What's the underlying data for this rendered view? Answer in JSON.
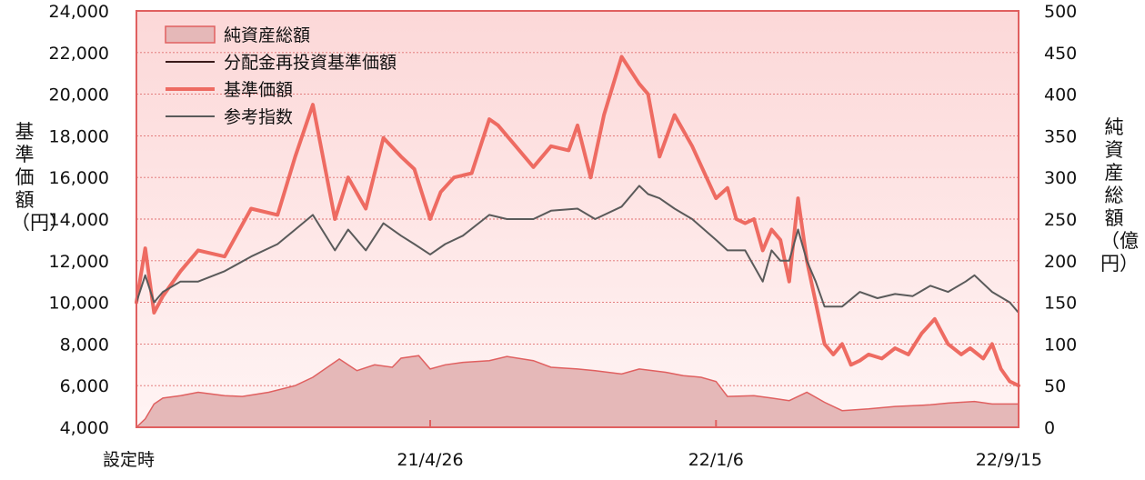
{
  "chart_data": {
    "type": "line",
    "ylabel_left": "基準価額（円）",
    "ylabel_right": "純資産総額（億円）",
    "y_left_range": [
      4000,
      24000
    ],
    "y_left_ticks": [
      "4,000",
      "6,000",
      "8,000",
      "10,000",
      "12,000",
      "14,000",
      "16,000",
      "18,000",
      "20,000",
      "22,000",
      "24,000"
    ],
    "y_right_range": [
      0,
      500
    ],
    "y_right_ticks": [
      "0",
      "50",
      "100",
      "150",
      "200",
      "250",
      "300",
      "350",
      "400",
      "450",
      "500"
    ],
    "x_ticks": [
      "設定時",
      "21/4/26",
      "22/1/6",
      "22/9/15"
    ],
    "x_range": [
      0,
      100
    ],
    "x_tick_positions": [
      0,
      33.3,
      65.7,
      100
    ],
    "grid": true,
    "legend_position": "top-left",
    "legend": [
      "純資産総額",
      "分配金再投資基準価額",
      "基準価額",
      "参考指数"
    ],
    "colors": {
      "net_assets_fill": "#e5b8b8",
      "net_assets_line": "#e06060",
      "nav": "#ee6b62",
      "nav_reinvested": "#3a1a1a",
      "index": "#5a5a5a",
      "frame": "#e06060",
      "grid": "#e07070"
    },
    "series": [
      {
        "name": "純資産総額",
        "axis": "right",
        "style": "area",
        "x": [
          0,
          1,
          2,
          3,
          5,
          7,
          10,
          12,
          15,
          18,
          20,
          23,
          25,
          27,
          29,
          30,
          32,
          33.3,
          35,
          37,
          40,
          42,
          45,
          47,
          50,
          52,
          55,
          57,
          60,
          62,
          64,
          65.7,
          67,
          70,
          72,
          74,
          76,
          78,
          80,
          83,
          86,
          88,
          90,
          92,
          95,
          97,
          100
        ],
        "values": [
          0,
          10,
          28,
          35,
          38,
          42,
          38,
          37,
          42,
          50,
          60,
          82,
          68,
          75,
          72,
          83,
          86,
          70,
          75,
          78,
          80,
          85,
          80,
          72,
          70,
          68,
          64,
          70,
          66,
          62,
          60,
          55,
          37,
          38,
          35,
          32,
          42,
          30,
          20,
          22,
          25,
          26,
          27,
          29,
          31,
          28,
          28
        ]
      },
      {
        "name": "分配金再投資基準価額",
        "axis": "left",
        "style": "line",
        "x": [
          0,
          1,
          2,
          3,
          5,
          7,
          10,
          13,
          16,
          18,
          20,
          22.5,
          24,
          26,
          28,
          30,
          31.5,
          33.3,
          34.5,
          36,
          38,
          40,
          41,
          43,
          45,
          47,
          49,
          50,
          51.5,
          53,
          55,
          57,
          58,
          59.3,
          61,
          63,
          65.7,
          67,
          68,
          69,
          70,
          71,
          72,
          73,
          74,
          75,
          76,
          77,
          78,
          79,
          80,
          81,
          82,
          83,
          84.5,
          86,
          87.5,
          89,
          90.5,
          92,
          93.5,
          94.5,
          96,
          97,
          98,
          99,
          100
        ],
        "values": [
          10000,
          12600,
          9500,
          10300,
          11500,
          12500,
          12200,
          14500,
          14200,
          17000,
          19500,
          14000,
          16000,
          14500,
          17900,
          17000,
          16400,
          14000,
          15300,
          16000,
          16200,
          18800,
          18500,
          17500,
          16500,
          17500,
          17300,
          18500,
          16000,
          19000,
          21800,
          20500,
          20000,
          17000,
          19000,
          17500,
          15000,
          15500,
          14000,
          13800,
          14000,
          12500,
          13500,
          13000,
          11000,
          15000,
          12000,
          10000,
          8000,
          7500,
          8000,
          7000,
          7200,
          7500,
          7300,
          7800,
          7500,
          8500,
          9200,
          8000,
          7500,
          7800,
          7300,
          8000,
          6800,
          6200,
          6000
        ]
      },
      {
        "name": "基準価額",
        "axis": "left",
        "style": "line",
        "x": [
          0,
          1,
          2,
          3,
          5,
          7,
          10,
          13,
          16,
          18,
          20,
          22.5,
          24,
          26,
          28,
          30,
          31.5,
          33.3,
          34.5,
          36,
          38,
          40,
          41,
          43,
          45,
          47,
          49,
          50,
          51.5,
          53,
          55,
          57,
          58,
          59.3,
          61,
          63,
          65.7,
          67,
          68,
          69,
          70,
          71,
          72,
          73,
          74,
          75,
          76,
          77,
          78,
          79,
          80,
          81,
          82,
          83,
          84.5,
          86,
          87.5,
          89,
          90.5,
          92,
          93.5,
          94.5,
          96,
          97,
          98,
          99,
          100
        ],
        "values": [
          10000,
          12600,
          9500,
          10300,
          11500,
          12500,
          12200,
          14500,
          14200,
          17000,
          19500,
          14000,
          16000,
          14500,
          17900,
          17000,
          16400,
          14000,
          15300,
          16000,
          16200,
          18800,
          18500,
          17500,
          16500,
          17500,
          17300,
          18500,
          16000,
          19000,
          21800,
          20500,
          20000,
          17000,
          19000,
          17500,
          15000,
          15500,
          14000,
          13800,
          14000,
          12500,
          13500,
          13000,
          11000,
          15000,
          12000,
          10000,
          8000,
          7500,
          8000,
          7000,
          7200,
          7500,
          7300,
          7800,
          7500,
          8500,
          9200,
          8000,
          7500,
          7800,
          7300,
          8000,
          6800,
          6200,
          6000
        ]
      },
      {
        "name": "参考指数",
        "axis": "left",
        "style": "line",
        "x": [
          0,
          1,
          2,
          3,
          5,
          7,
          10,
          13,
          16,
          18,
          20,
          22.5,
          24,
          26,
          28,
          30,
          31.5,
          33.3,
          35,
          37,
          40,
          42,
          45,
          47,
          50,
          52,
          55,
          57,
          58,
          59.3,
          61,
          63,
          65.7,
          67,
          69,
          71,
          72,
          73,
          74,
          75,
          76,
          77,
          78,
          80,
          82,
          84,
          86,
          88,
          90,
          92,
          94,
          95,
          97,
          99,
          100
        ],
        "values": [
          10000,
          11300,
          10000,
          10500,
          11000,
          11000,
          11500,
          12200,
          12800,
          13500,
          14200,
          12500,
          13500,
          12500,
          13800,
          13200,
          12800,
          12300,
          12800,
          13200,
          14200,
          14000,
          14000,
          14400,
          14500,
          14000,
          14600,
          15600,
          15200,
          15000,
          14500,
          14000,
          13000,
          12500,
          12500,
          11000,
          12500,
          12000,
          12000,
          13500,
          12000,
          11000,
          9800,
          9800,
          10500,
          10200,
          10400,
          10300,
          10800,
          10500,
          11000,
          11300,
          10500,
          10000,
          9500
        ]
      }
    ]
  }
}
